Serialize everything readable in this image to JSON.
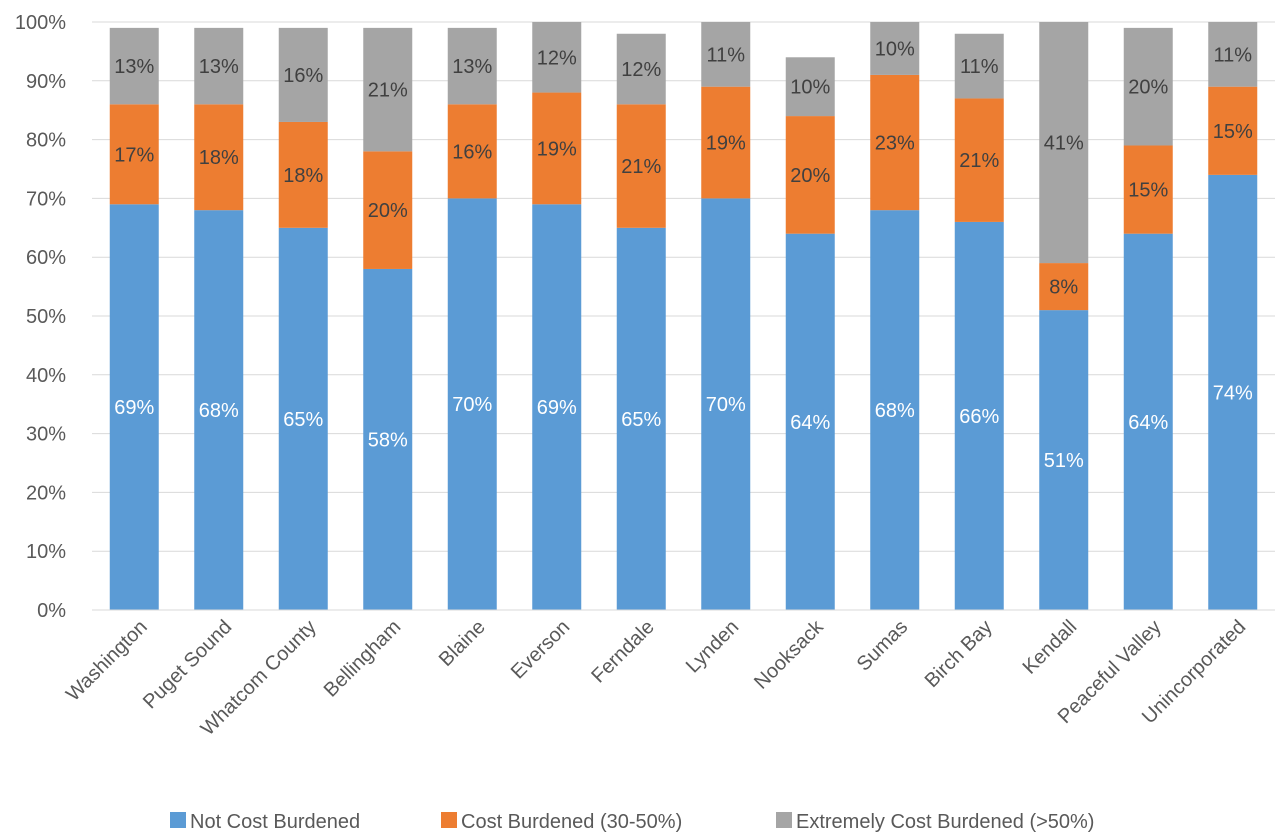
{
  "chart_data": {
    "type": "bar",
    "stacked": true,
    "title": "",
    "xlabel": "",
    "ylabel": "",
    "ylim": [
      0,
      100
    ],
    "y_ticks": [
      "0%",
      "10%",
      "20%",
      "30%",
      "40%",
      "50%",
      "60%",
      "70%",
      "80%",
      "90%",
      "100%"
    ],
    "grid": true,
    "legend_position": "bottom",
    "categories": [
      "Washington",
      "Puget Sound",
      "Whatcom County",
      "Bellingham",
      "Blaine",
      "Everson",
      "Ferndale",
      "Lynden",
      "Nooksack",
      "Sumas",
      "Birch Bay",
      "Kendall",
      "Peaceful Valley",
      "Unincorporated"
    ],
    "series": [
      {
        "name": "Not Cost Burdened",
        "color": "#5b9bd5",
        "label_color": "#ffffff",
        "values": [
          69,
          68,
          65,
          58,
          70,
          69,
          65,
          70,
          64,
          68,
          66,
          51,
          64,
          74
        ],
        "labels": [
          "69%",
          "68%",
          "65%",
          "58%",
          "70%",
          "69%",
          "65%",
          "70%",
          "64%",
          "68%",
          "66%",
          "51%",
          "64%",
          "74%"
        ]
      },
      {
        "name": "Cost Burdened (30-50%)",
        "color": "#ed7d31",
        "label_color": "#404040",
        "values": [
          17,
          18,
          18,
          20,
          16,
          19,
          21,
          19,
          20,
          23,
          21,
          8,
          15,
          15
        ],
        "labels": [
          "17%",
          "18%",
          "18%",
          "20%",
          "16%",
          "19%",
          "21%",
          "19%",
          "20%",
          "23%",
          "21%",
          "8%",
          "15%",
          "15%"
        ]
      },
      {
        "name": "Extremely Cost Burdened (>50%)",
        "color": "#a5a5a5",
        "label_color": "#404040",
        "values": [
          13,
          13,
          16,
          21,
          13,
          12,
          12,
          11,
          10,
          10,
          11,
          41,
          20,
          11
        ],
        "labels": [
          "13%",
          "13%",
          "16%",
          "21%",
          "13%",
          "12%",
          "12%",
          "11%",
          "10%",
          "10%",
          "11%",
          "41%",
          "20%",
          "11%"
        ]
      }
    ]
  }
}
